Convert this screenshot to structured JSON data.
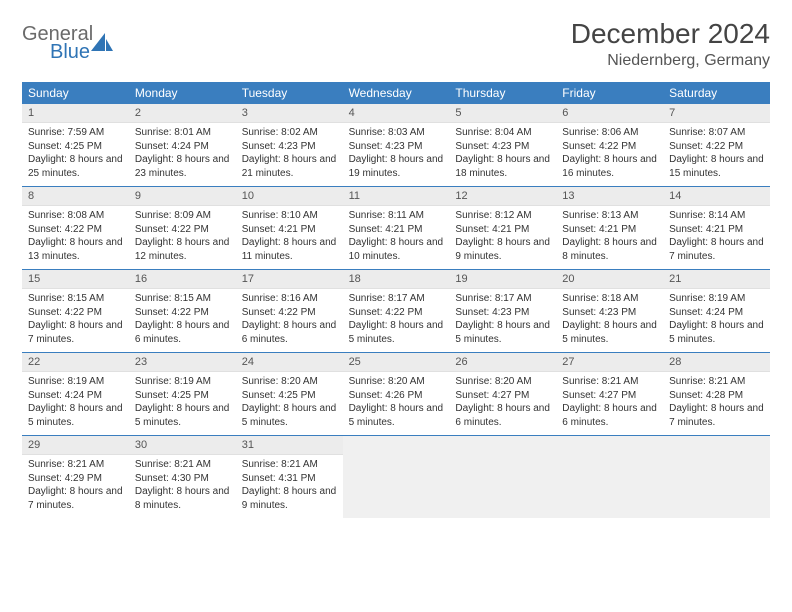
{
  "brand": {
    "name1": "General",
    "name2": "Blue"
  },
  "title": "December 2024",
  "location": "Niedernberg, Germany",
  "colors": {
    "header_bg": "#3a7ebf",
    "header_text": "#ffffff",
    "daynum_bg": "#ececec",
    "border": "#3a7ebf",
    "brand_gray": "#6a6a6a",
    "brand_blue": "#2f74b5"
  },
  "dayNames": [
    "Sunday",
    "Monday",
    "Tuesday",
    "Wednesday",
    "Thursday",
    "Friday",
    "Saturday"
  ],
  "layout": {
    "columns": 7,
    "rows": 5,
    "trailing_empty": 4
  },
  "days": [
    {
      "n": 1,
      "sunrise": "7:59 AM",
      "sunset": "4:25 PM",
      "daylight": "8 hours and 25 minutes."
    },
    {
      "n": 2,
      "sunrise": "8:01 AM",
      "sunset": "4:24 PM",
      "daylight": "8 hours and 23 minutes."
    },
    {
      "n": 3,
      "sunrise": "8:02 AM",
      "sunset": "4:23 PM",
      "daylight": "8 hours and 21 minutes."
    },
    {
      "n": 4,
      "sunrise": "8:03 AM",
      "sunset": "4:23 PM",
      "daylight": "8 hours and 19 minutes."
    },
    {
      "n": 5,
      "sunrise": "8:04 AM",
      "sunset": "4:23 PM",
      "daylight": "8 hours and 18 minutes."
    },
    {
      "n": 6,
      "sunrise": "8:06 AM",
      "sunset": "4:22 PM",
      "daylight": "8 hours and 16 minutes."
    },
    {
      "n": 7,
      "sunrise": "8:07 AM",
      "sunset": "4:22 PM",
      "daylight": "8 hours and 15 minutes."
    },
    {
      "n": 8,
      "sunrise": "8:08 AM",
      "sunset": "4:22 PM",
      "daylight": "8 hours and 13 minutes."
    },
    {
      "n": 9,
      "sunrise": "8:09 AM",
      "sunset": "4:22 PM",
      "daylight": "8 hours and 12 minutes."
    },
    {
      "n": 10,
      "sunrise": "8:10 AM",
      "sunset": "4:21 PM",
      "daylight": "8 hours and 11 minutes."
    },
    {
      "n": 11,
      "sunrise": "8:11 AM",
      "sunset": "4:21 PM",
      "daylight": "8 hours and 10 minutes."
    },
    {
      "n": 12,
      "sunrise": "8:12 AM",
      "sunset": "4:21 PM",
      "daylight": "8 hours and 9 minutes."
    },
    {
      "n": 13,
      "sunrise": "8:13 AM",
      "sunset": "4:21 PM",
      "daylight": "8 hours and 8 minutes."
    },
    {
      "n": 14,
      "sunrise": "8:14 AM",
      "sunset": "4:21 PM",
      "daylight": "8 hours and 7 minutes."
    },
    {
      "n": 15,
      "sunrise": "8:15 AM",
      "sunset": "4:22 PM",
      "daylight": "8 hours and 7 minutes."
    },
    {
      "n": 16,
      "sunrise": "8:15 AM",
      "sunset": "4:22 PM",
      "daylight": "8 hours and 6 minutes."
    },
    {
      "n": 17,
      "sunrise": "8:16 AM",
      "sunset": "4:22 PM",
      "daylight": "8 hours and 6 minutes."
    },
    {
      "n": 18,
      "sunrise": "8:17 AM",
      "sunset": "4:22 PM",
      "daylight": "8 hours and 5 minutes."
    },
    {
      "n": 19,
      "sunrise": "8:17 AM",
      "sunset": "4:23 PM",
      "daylight": "8 hours and 5 minutes."
    },
    {
      "n": 20,
      "sunrise": "8:18 AM",
      "sunset": "4:23 PM",
      "daylight": "8 hours and 5 minutes."
    },
    {
      "n": 21,
      "sunrise": "8:19 AM",
      "sunset": "4:24 PM",
      "daylight": "8 hours and 5 minutes."
    },
    {
      "n": 22,
      "sunrise": "8:19 AM",
      "sunset": "4:24 PM",
      "daylight": "8 hours and 5 minutes."
    },
    {
      "n": 23,
      "sunrise": "8:19 AM",
      "sunset": "4:25 PM",
      "daylight": "8 hours and 5 minutes."
    },
    {
      "n": 24,
      "sunrise": "8:20 AM",
      "sunset": "4:25 PM",
      "daylight": "8 hours and 5 minutes."
    },
    {
      "n": 25,
      "sunrise": "8:20 AM",
      "sunset": "4:26 PM",
      "daylight": "8 hours and 5 minutes."
    },
    {
      "n": 26,
      "sunrise": "8:20 AM",
      "sunset": "4:27 PM",
      "daylight": "8 hours and 6 minutes."
    },
    {
      "n": 27,
      "sunrise": "8:21 AM",
      "sunset": "4:27 PM",
      "daylight": "8 hours and 6 minutes."
    },
    {
      "n": 28,
      "sunrise": "8:21 AM",
      "sunset": "4:28 PM",
      "daylight": "8 hours and 7 minutes."
    },
    {
      "n": 29,
      "sunrise": "8:21 AM",
      "sunset": "4:29 PM",
      "daylight": "8 hours and 7 minutes."
    },
    {
      "n": 30,
      "sunrise": "8:21 AM",
      "sunset": "4:30 PM",
      "daylight": "8 hours and 8 minutes."
    },
    {
      "n": 31,
      "sunrise": "8:21 AM",
      "sunset": "4:31 PM",
      "daylight": "8 hours and 9 minutes."
    }
  ],
  "labels": {
    "sunrise": "Sunrise:",
    "sunset": "Sunset:",
    "daylight": "Daylight:"
  }
}
